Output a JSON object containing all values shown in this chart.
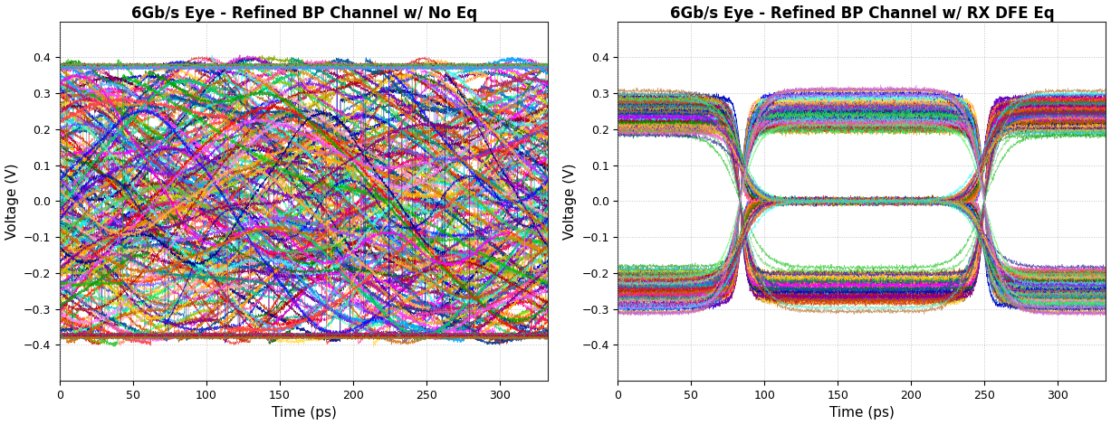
{
  "title1": "6Gb/s Eye - Refined BP Channel w/ No Eq",
  "title2": "6Gb/s Eye - Refined BP Channel w/ RX DFE Eq",
  "xlabel": "Time (ps)",
  "ylabel": "Voltage (V)",
  "xlim": [
    0,
    333
  ],
  "ylim": [
    -0.5,
    0.5
  ],
  "yticks": [
    -0.4,
    -0.3,
    -0.2,
    -0.1,
    0.0,
    0.1,
    0.2,
    0.3,
    0.4
  ],
  "xticks": [
    0,
    50,
    100,
    150,
    200,
    250,
    300
  ],
  "background_color": "#ffffff",
  "plot_bg_color": "#ffffff",
  "grid_color": "#aaaaaa",
  "title_fontsize": 12,
  "label_fontsize": 11,
  "tick_fontsize": 9
}
